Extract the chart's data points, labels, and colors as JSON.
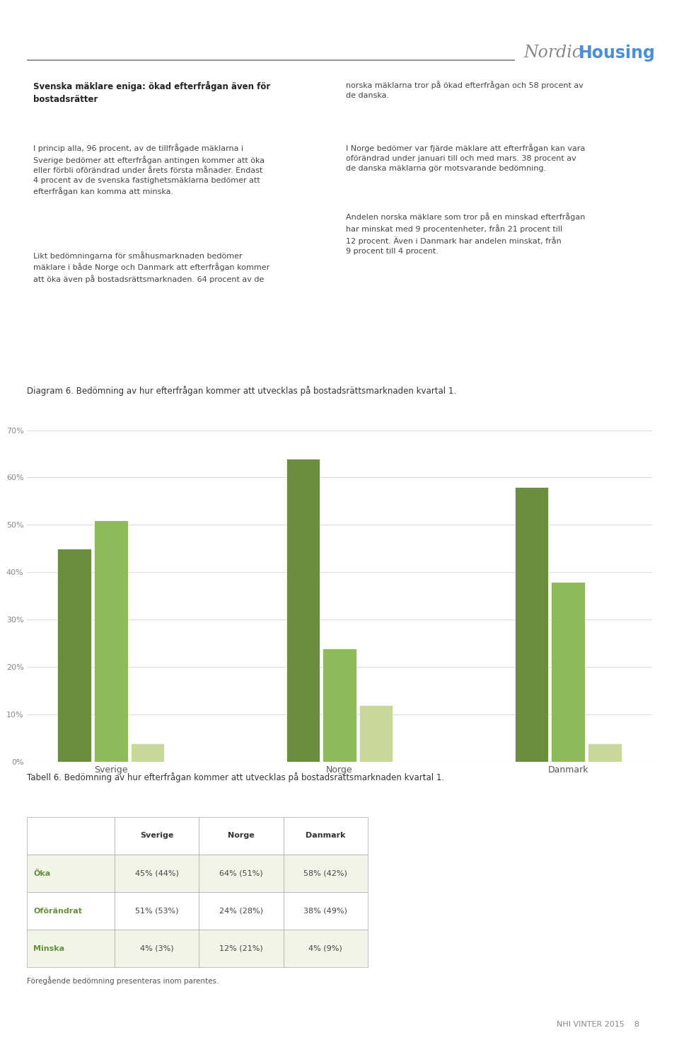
{
  "background_color": "#ffffff",
  "header_line_color": "#999999",
  "header_nordic_color": "#888888",
  "header_housing_color": "#4a90d9",
  "body_left_title": "Svenska mäklare eniga: ökad efterfrågan även för\nbostads rätter",
  "body_left_para1": "I princip alla, 96 procent, av de tillfrågade mäklarna i\nSverige bedömer att efterfrågan antingen kommer att öka\neller förbli oförändrad under årets första månader. Endast\n4 procent av de svenska fastighetsmäklarna bedömer att\nefterfrågan kan komma att minska.",
  "body_left_para2": "Likt bedömningarna för småhusmarknaden bedömer\nmäklare i både Norge och Danmark att efterfrågan kommer\natt öka även på bostadsrättsmarknaden. 64 procent av de",
  "body_right_para1": "norska mäklarna tror på ökad efterfrågan och 58 procent av\nde danska.",
  "body_right_para2": "I Norge bedömer var fjärde mäklare att efterfrågan kan vara\noförändrad under januari till och med mars. 38 procent av\nde danska mäklarna gör motsvarande bedömning.",
  "body_right_para3": "Andelen norska mäklare som tror på en minskad efterfrågan\nhar minskat med 9 procentenheter, från 21 procent till\n12 procent. Även i Danmark har andelen minskat, från\n9 procent till 4 procent.",
  "diagram_caption": "Diagram 6. Bedömning av hur efterfrågan kommer att utvecklas på bostadsrättsmarknaden kvartal 1.",
  "bar_categories": [
    "Sverige",
    "Norge",
    "Danmark"
  ],
  "bar_series": [
    "Öka",
    "Oförändrat",
    "Minska"
  ],
  "bar_values": {
    "Öka": [
      45,
      64,
      58
    ],
    "Oförändrat": [
      51,
      24,
      38
    ],
    "Minska": [
      4,
      12,
      4
    ]
  },
  "bar_colors": {
    "Öka": "#6b8e3e",
    "Oförändrat": "#8fba5a",
    "Minska": "#c8d89a"
  },
  "yticks": [
    0,
    10,
    20,
    30,
    40,
    50,
    60,
    70
  ],
  "ytick_labels": [
    "0%",
    "10%",
    "20%",
    "30%",
    "40%",
    "50%",
    "60%",
    "70%"
  ],
  "ylim": [
    0,
    72
  ],
  "grid_color": "#dddddd",
  "axis_label_color": "#888888",
  "table_caption": "Tabell 6. Bedömning av hur efterfrågan kommer att utvecklas på bostadsrättsmarknaden kvartal 1.",
  "table_rows": [
    "Öka",
    "Oförändrat",
    "Minska"
  ],
  "table_cols": [
    "Sverige",
    "Norge",
    "Danmark"
  ],
  "table_data": [
    [
      "45% (44%)",
      "64% (51%)",
      "58% (42%)"
    ],
    [
      "51% (53%)",
      "24% (28%)",
      "38% (49%)"
    ],
    [
      "4% (3%)",
      "12% (21%)",
      "4% (9%)"
    ]
  ],
  "table_row_bg_odd": "#f0f5e8",
  "table_row_bg_even": "#ffffff",
  "table_border_color": "#aaaaaa",
  "table_label_color": "#6b8e3e",
  "table_note": "Föregående bedömning presenteras inom parentes.",
  "footer_text": "NHI VINTER 2015    8"
}
